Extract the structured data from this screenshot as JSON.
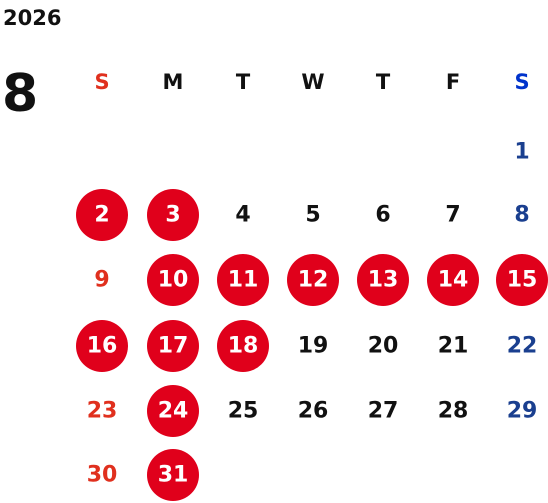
{
  "header": {
    "year": "2026",
    "month": "8"
  },
  "weekdays": [
    "S",
    "M",
    "T",
    "W",
    "T",
    "F",
    "S"
  ],
  "weeks": [
    [
      null,
      null,
      null,
      null,
      null,
      null,
      {
        "day": "1"
      }
    ],
    [
      {
        "day": "2",
        "highlighted": true
      },
      {
        "day": "3",
        "highlighted": true
      },
      {
        "day": "4"
      },
      {
        "day": "5"
      },
      {
        "day": "6"
      },
      {
        "day": "7"
      },
      {
        "day": "8"
      }
    ],
    [
      {
        "day": "9"
      },
      {
        "day": "10",
        "highlighted": true
      },
      {
        "day": "11",
        "highlighted": true
      },
      {
        "day": "12",
        "highlighted": true
      },
      {
        "day": "13",
        "highlighted": true
      },
      {
        "day": "14",
        "highlighted": true
      },
      {
        "day": "15",
        "highlighted": true
      }
    ],
    [
      {
        "day": "16",
        "highlighted": true
      },
      {
        "day": "17",
        "highlighted": true
      },
      {
        "day": "18",
        "highlighted": true
      },
      {
        "day": "19"
      },
      {
        "day": "20"
      },
      {
        "day": "21"
      },
      {
        "day": "22"
      }
    ],
    [
      {
        "day": "23"
      },
      {
        "day": "24",
        "highlighted": true
      },
      {
        "day": "25"
      },
      {
        "day": "26"
      },
      {
        "day": "27"
      },
      {
        "day": "28"
      },
      {
        "day": "29"
      }
    ],
    [
      {
        "day": "30"
      },
      {
        "day": "31",
        "highlighted": true
      },
      null,
      null,
      null,
      null,
      null
    ]
  ]
}
